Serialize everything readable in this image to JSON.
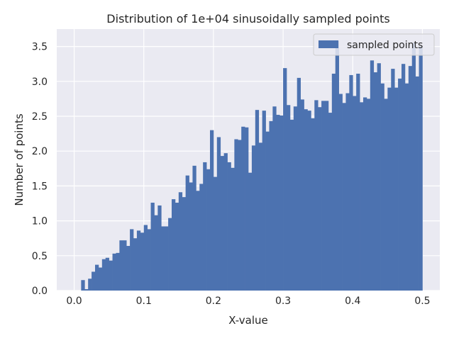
{
  "chart_data": {
    "type": "bar",
    "title": "Distribution of 1e+04 sinusoidally sampled points",
    "xlabel": "X-value",
    "ylabel": "Number of points",
    "xlim": [
      -0.025,
      0.525
    ],
    "ylim": [
      0,
      3.75
    ],
    "xticks": [
      0.0,
      0.1,
      0.2,
      0.3,
      0.4,
      0.5
    ],
    "xtick_labels": [
      "0.0",
      "0.1",
      "0.2",
      "0.3",
      "0.4",
      "0.5"
    ],
    "yticks": [
      0.0,
      0.5,
      1.0,
      1.5,
      2.0,
      2.5,
      3.0,
      3.5
    ],
    "ytick_labels": [
      "0.0",
      "0.5",
      "1.0",
      "1.5",
      "2.0",
      "2.5",
      "3.0",
      "3.5"
    ],
    "grid": true,
    "legend": {
      "position": "upper-right"
    },
    "bin_start": 0.0,
    "bin_width": 0.005,
    "series": [
      {
        "name": "sampled points",
        "color": "#4c72b0",
        "values": [
          0,
          0,
          0.15,
          0.02,
          0.17,
          0.27,
          0.37,
          0.33,
          0.45,
          0.47,
          0.43,
          0.53,
          0.54,
          0.72,
          0.72,
          0.64,
          0.88,
          0.75,
          0.86,
          0.83,
          0.94,
          0.88,
          1.26,
          1.08,
          1.22,
          0.92,
          0.92,
          1.04,
          1.31,
          1.26,
          1.41,
          1.34,
          1.65,
          1.55,
          1.79,
          1.43,
          1.53,
          1.84,
          1.74,
          2.3,
          1.63,
          2.2,
          1.93,
          1.97,
          1.84,
          1.76,
          2.17,
          2.16,
          2.35,
          2.34,
          1.69,
          2.08,
          2.59,
          2.12,
          2.58,
          2.28,
          2.43,
          2.64,
          2.52,
          2.51,
          3.19,
          2.66,
          2.45,
          2.64,
          3.05,
          2.74,
          2.6,
          2.58,
          2.47,
          2.73,
          2.63,
          2.72,
          2.72,
          2.55,
          3.11,
          3.58,
          2.82,
          2.69,
          2.83,
          3.09,
          2.79,
          3.11,
          2.7,
          2.77,
          2.75,
          3.3,
          3.13,
          3.26,
          2.97,
          2.75,
          2.91,
          3.18,
          2.91,
          3.04,
          3.25,
          2.97,
          3.22,
          3.55,
          3.07,
          3.5
        ]
      }
    ]
  }
}
